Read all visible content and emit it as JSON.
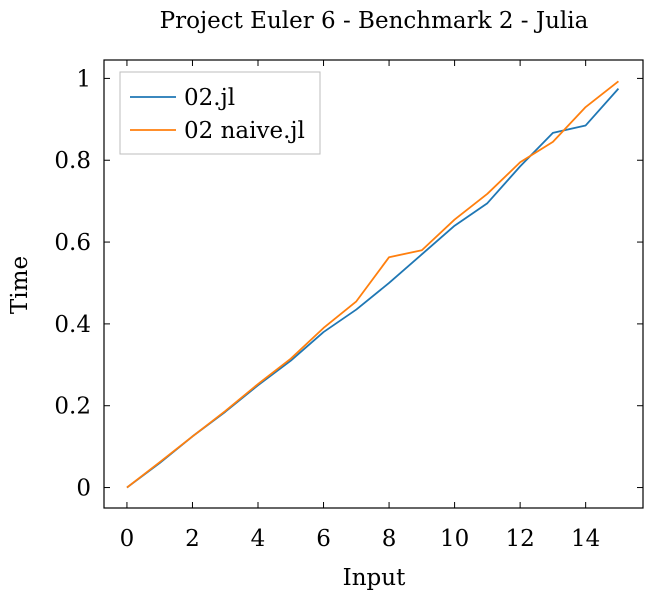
{
  "chart_data": {
    "type": "line",
    "title": "Project Euler 6 - Benchmark 2 - Julia",
    "xlabel": "Input",
    "ylabel": "Time",
    "xlim": [
      -0.7,
      15.75
    ],
    "ylim": [
      -0.05,
      1.045
    ],
    "xticks": [
      0,
      2,
      4,
      6,
      8,
      10,
      12,
      14
    ],
    "xtick_labels": [
      "0",
      "2",
      "4",
      "6",
      "8",
      "10",
      "12",
      "14"
    ],
    "yticks": [
      0,
      0.2,
      0.4,
      0.6,
      0.8,
      1
    ],
    "ytick_labels": [
      "0",
      "0.2",
      "0.4",
      "0.6",
      "0.8",
      "1"
    ],
    "grid": false,
    "legend_position": "top-left",
    "x": [
      0,
      1,
      2,
      3,
      4,
      5,
      6,
      7,
      8,
      9,
      10,
      11,
      12,
      13,
      14,
      15
    ],
    "series": [
      {
        "name": "02.jl",
        "color": "#1f77b4",
        "values": [
          0.0,
          0.06,
          0.125,
          0.185,
          0.25,
          0.31,
          0.38,
          0.435,
          0.5,
          0.57,
          0.64,
          0.695,
          0.785,
          0.867,
          0.885,
          0.975
        ]
      },
      {
        "name": "02 naive.jl",
        "color": "#ff7f0e",
        "values": [
          0.0,
          0.062,
          0.125,
          0.187,
          0.253,
          0.315,
          0.39,
          0.455,
          0.563,
          0.58,
          0.655,
          0.718,
          0.795,
          0.845,
          0.93,
          0.993
        ]
      }
    ]
  }
}
